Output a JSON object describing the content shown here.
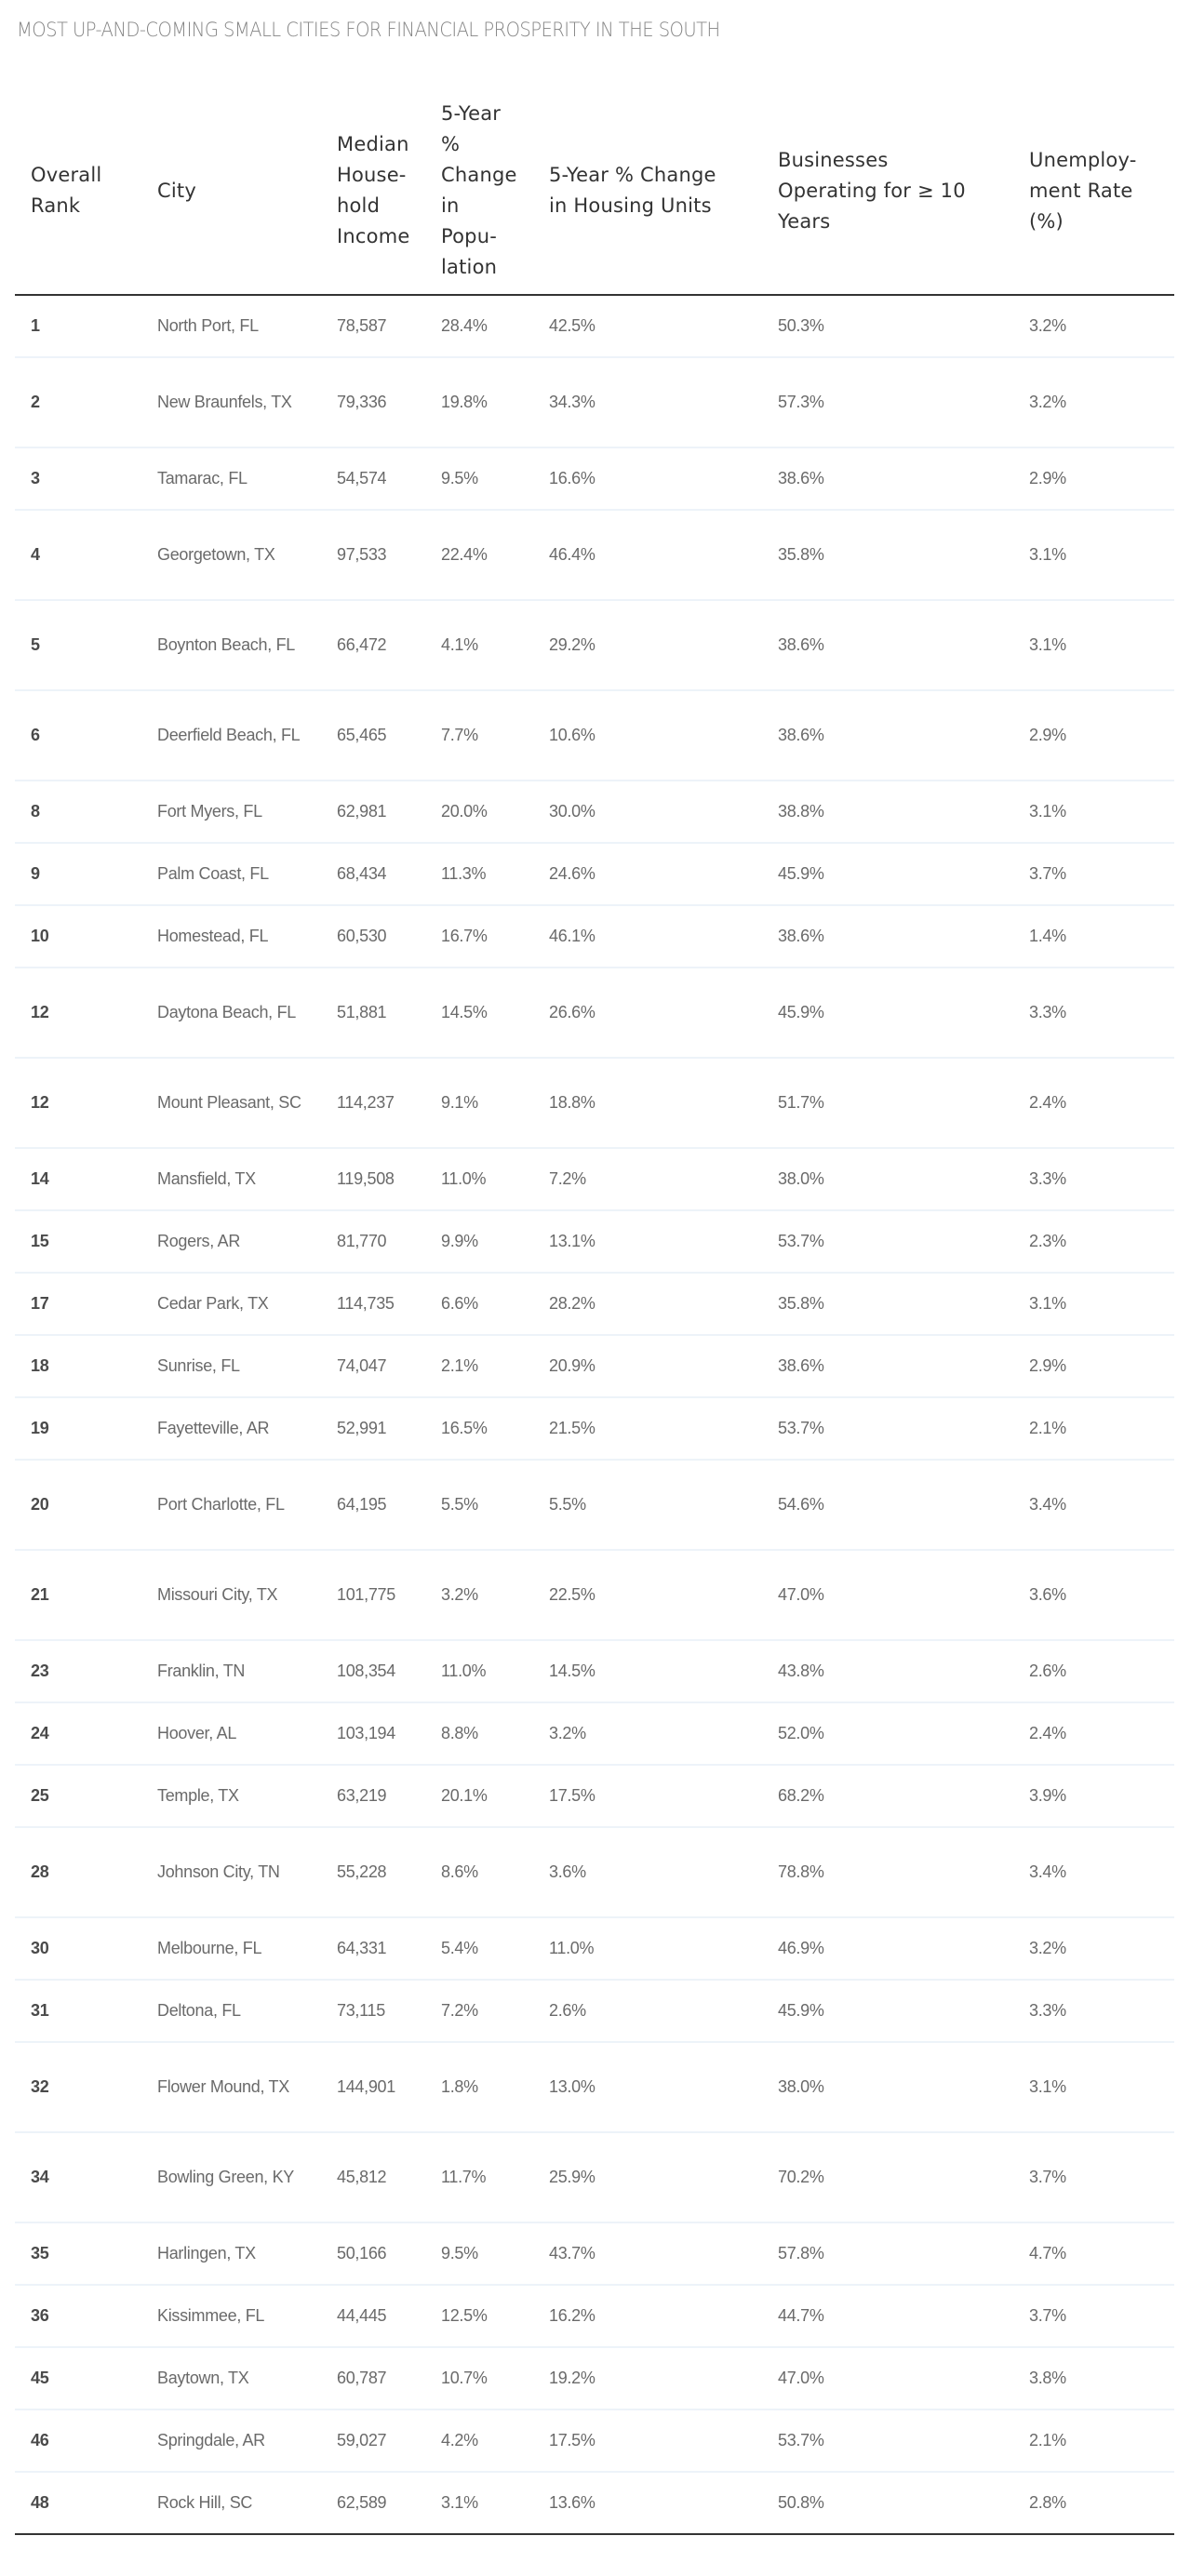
{
  "title": "MOST UP-AND-COMING SMALL CITIES FOR FINANCIAL PROSPERITY IN THE SOUTH",
  "columns": [
    {
      "key": "rank",
      "lines": [
        "Overall",
        "Rank"
      ]
    },
    {
      "key": "city",
      "lines": [
        "City"
      ]
    },
    {
      "key": "income",
      "lines": [
        "Median",
        "House-",
        "hold",
        "Income"
      ]
    },
    {
      "key": "pop_change",
      "lines": [
        "5-Year",
        "%",
        "Change",
        "in",
        "Popu-",
        "lation"
      ]
    },
    {
      "key": "housing_change",
      "lines": [
        "5-Year % Change",
        "in Housing Units"
      ]
    },
    {
      "key": "businesses",
      "lines": [
        "Businesses",
        "Operating for ≥ 10",
        "Years"
      ]
    },
    {
      "key": "unemployment",
      "lines": [
        "Unemploy-",
        "ment Rate",
        "(%)"
      ]
    }
  ],
  "rows": [
    {
      "rank": "1",
      "city": "North Port, FL",
      "income": "78,587",
      "pop_change": "28.4%",
      "housing_change": "42.5%",
      "businesses": "50.3%",
      "unemployment": "3.2%"
    },
    {
      "rank": "2",
      "city": "New Braunfels, TX",
      "income": "79,336",
      "pop_change": "19.8%",
      "housing_change": "34.3%",
      "businesses": "57.3%",
      "unemployment": "3.2%"
    },
    {
      "rank": "3",
      "city": "Tamarac, FL",
      "income": "54,574",
      "pop_change": "9.5%",
      "housing_change": "16.6%",
      "businesses": "38.6%",
      "unemployment": "2.9%"
    },
    {
      "rank": "4",
      "city": "Georgetown, TX",
      "income": "97,533",
      "pop_change": "22.4%",
      "housing_change": "46.4%",
      "businesses": "35.8%",
      "unemployment": "3.1%"
    },
    {
      "rank": "5",
      "city": "Boynton Beach, FL",
      "income": "66,472",
      "pop_change": "4.1%",
      "housing_change": "29.2%",
      "businesses": "38.6%",
      "unemployment": "3.1%"
    },
    {
      "rank": "6",
      "city": "Deerfield Beach, FL",
      "income": "65,465",
      "pop_change": "7.7%",
      "housing_change": "10.6%",
      "businesses": "38.6%",
      "unemployment": "2.9%"
    },
    {
      "rank": "8",
      "city": "Fort Myers, FL",
      "income": "62,981",
      "pop_change": "20.0%",
      "housing_change": "30.0%",
      "businesses": "38.8%",
      "unemployment": "3.1%"
    },
    {
      "rank": "9",
      "city": "Palm Coast, FL",
      "income": "68,434",
      "pop_change": "11.3%",
      "housing_change": "24.6%",
      "businesses": "45.9%",
      "unemployment": "3.7%"
    },
    {
      "rank": "10",
      "city": "Homestead, FL",
      "income": "60,530",
      "pop_change": "16.7%",
      "housing_change": "46.1%",
      "businesses": "38.6%",
      "unemployment": "1.4%"
    },
    {
      "rank": "12",
      "city": "Daytona Beach, FL",
      "income": "51,881",
      "pop_change": "14.5%",
      "housing_change": "26.6%",
      "businesses": "45.9%",
      "unemployment": "3.3%"
    },
    {
      "rank": "12",
      "city": "Mount Pleasant, SC",
      "income": "114,237",
      "pop_change": "9.1%",
      "housing_change": "18.8%",
      "businesses": "51.7%",
      "unemployment": "2.4%"
    },
    {
      "rank": "14",
      "city": "Mansfield, TX",
      "income": "119,508",
      "pop_change": "11.0%",
      "housing_change": "7.2%",
      "businesses": "38.0%",
      "unemployment": "3.3%"
    },
    {
      "rank": "15",
      "city": "Rogers, AR",
      "income": "81,770",
      "pop_change": "9.9%",
      "housing_change": "13.1%",
      "businesses": "53.7%",
      "unemployment": "2.3%"
    },
    {
      "rank": "17",
      "city": "Cedar Park, TX",
      "income": "114,735",
      "pop_change": "6.6%",
      "housing_change": "28.2%",
      "businesses": "35.8%",
      "unemployment": "3.1%"
    },
    {
      "rank": "18",
      "city": "Sunrise, FL",
      "income": "74,047",
      "pop_change": "2.1%",
      "housing_change": "20.9%",
      "businesses": "38.6%",
      "unemployment": "2.9%"
    },
    {
      "rank": "19",
      "city": "Fayetteville, AR",
      "income": "52,991",
      "pop_change": "16.5%",
      "housing_change": "21.5%",
      "businesses": "53.7%",
      "unemployment": "2.1%"
    },
    {
      "rank": "20",
      "city": "Port Charlotte, FL",
      "income": "64,195",
      "pop_change": "5.5%",
      "housing_change": "5.5%",
      "businesses": "54.6%",
      "unemployment": "3.4%"
    },
    {
      "rank": "21",
      "city": "Missouri City, TX",
      "income": "101,775",
      "pop_change": "3.2%",
      "housing_change": "22.5%",
      "businesses": "47.0%",
      "unemployment": "3.6%"
    },
    {
      "rank": "23",
      "city": "Franklin, TN",
      "income": "108,354",
      "pop_change": "11.0%",
      "housing_change": "14.5%",
      "businesses": "43.8%",
      "unemployment": "2.6%"
    },
    {
      "rank": "24",
      "city": "Hoover, AL",
      "income": "103,194",
      "pop_change": "8.8%",
      "housing_change": "3.2%",
      "businesses": "52.0%",
      "unemployment": "2.4%"
    },
    {
      "rank": "25",
      "city": "Temple, TX",
      "income": "63,219",
      "pop_change": "20.1%",
      "housing_change": "17.5%",
      "businesses": "68.2%",
      "unemployment": "3.9%"
    },
    {
      "rank": "28",
      "city": "Johnson City, TN",
      "income": "55,228",
      "pop_change": "8.6%",
      "housing_change": "3.6%",
      "businesses": "78.8%",
      "unemployment": "3.4%"
    },
    {
      "rank": "30",
      "city": "Melbourne, FL",
      "income": "64,331",
      "pop_change": "5.4%",
      "housing_change": "11.0%",
      "businesses": "46.9%",
      "unemployment": "3.2%"
    },
    {
      "rank": "31",
      "city": "Deltona, FL",
      "income": "73,115",
      "pop_change": "7.2%",
      "housing_change": "2.6%",
      "businesses": "45.9%",
      "unemployment": "3.3%"
    },
    {
      "rank": "32",
      "city": "Flower Mound, TX",
      "income": "144,901",
      "pop_change": "1.8%",
      "housing_change": "13.0%",
      "businesses": "38.0%",
      "unemployment": "3.1%"
    },
    {
      "rank": "34",
      "city": "Bowling Green, KY",
      "income": "45,812",
      "pop_change": "11.7%",
      "housing_change": "25.9%",
      "businesses": "70.2%",
      "unemployment": "3.7%"
    },
    {
      "rank": "35",
      "city": "Harlingen, TX",
      "income": "50,166",
      "pop_change": "9.5%",
      "housing_change": "43.7%",
      "businesses": "57.8%",
      "unemployment": "4.7%"
    },
    {
      "rank": "36",
      "city": "Kissimmee, FL",
      "income": "44,445",
      "pop_change": "12.5%",
      "housing_change": "16.2%",
      "businesses": "44.7%",
      "unemployment": "3.7%"
    },
    {
      "rank": "45",
      "city": "Baytown, TX",
      "income": "60,787",
      "pop_change": "10.7%",
      "housing_change": "19.2%",
      "businesses": "47.0%",
      "unemployment": "3.8%"
    },
    {
      "rank": "46",
      "city": "Springdale, AR",
      "income": "59,027",
      "pop_change": "4.2%",
      "housing_change": "17.5%",
      "businesses": "53.7%",
      "unemployment": "2.1%"
    },
    {
      "rank": "48",
      "city": "Rock Hill, SC",
      "income": "62,589",
      "pop_change": "3.1%",
      "housing_change": "13.6%",
      "businesses": "50.8%",
      "unemployment": "2.8%"
    }
  ],
  "colors": {
    "title": "#858585",
    "header_text": "#333333",
    "header_border": "#333333",
    "cell_text": "#6a6a6a",
    "rank_text": "#4a4a4a",
    "row_border": "#edf3f9"
  }
}
